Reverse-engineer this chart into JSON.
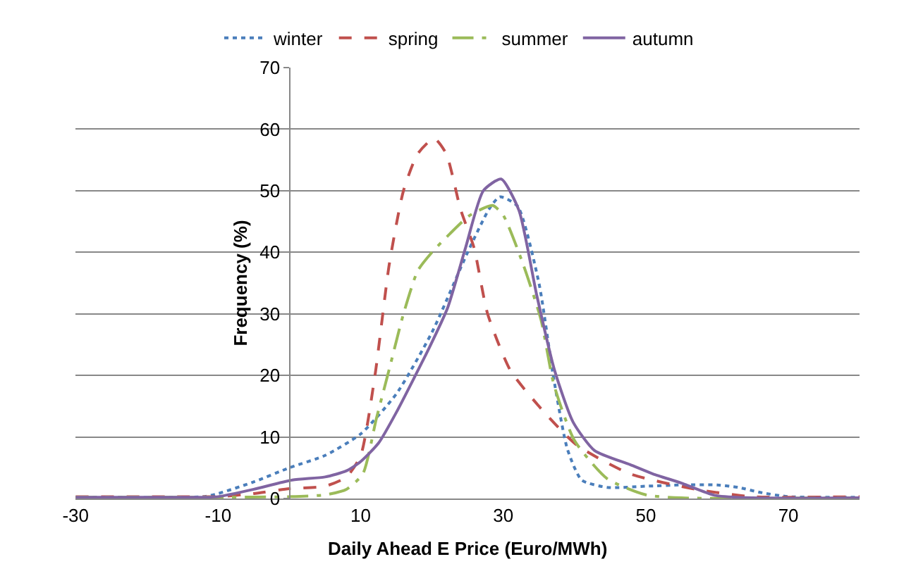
{
  "chart_data": {
    "type": "line",
    "xlabel": "Daily Ahead E Price (Euro/MWh)",
    "ylabel": "Frequency (%)",
    "xlim": [
      -30,
      80
    ],
    "xticks": [
      -30,
      -10,
      10,
      30,
      50,
      70
    ],
    "ylim": [
      0,
      70
    ],
    "yticks": [
      0,
      10,
      20,
      30,
      40,
      50,
      60,
      70
    ],
    "grid": "y",
    "legend": "top",
    "marker": "none",
    "series": [
      {
        "name": "winter",
        "color": "#4a7ebb",
        "line_style": "dotted",
        "x": [
          -30,
          -15,
          -12,
          -10,
          -5,
          0,
          5,
          10,
          15,
          20,
          25,
          28,
          29.5,
          32,
          35,
          37,
          39,
          41,
          44.6,
          50,
          55,
          60,
          63,
          66,
          70,
          80
        ],
        "values": [
          0.2,
          0.2,
          0.3,
          0.8,
          2.7,
          5,
          7,
          10.5,
          17,
          27,
          40,
          47,
          49,
          47.5,
          35,
          20,
          8,
          3,
          1.8,
          2,
          2.2,
          2.2,
          1.8,
          1,
          0.3,
          0.2
        ]
      },
      {
        "name": "spring",
        "color": "#c0504d",
        "line_style": "dashed",
        "x": [
          -30,
          -15,
          -10,
          -5,
          0,
          5,
          8,
          10,
          12,
          14,
          16,
          18,
          20.3,
          22,
          24,
          25.9,
          27.8,
          31,
          35.3,
          40.3,
          47.8,
          57,
          65,
          80
        ],
        "values": [
          0.3,
          0.3,
          0.3,
          0.8,
          1.6,
          2,
          3.5,
          7,
          20,
          38,
          50,
          56,
          58.5,
          56,
          47,
          40.7,
          30,
          20.8,
          14.6,
          8.7,
          4,
          1.5,
          0.3,
          0.3
        ]
      },
      {
        "name": "summer",
        "color": "#9bbb59",
        "line_style": "dashdot",
        "x": [
          -30,
          -10,
          0,
          5,
          8,
          10.3,
          12.2,
          14,
          16,
          18,
          20,
          22.5,
          25.3,
          28.5,
          30,
          32.8,
          35.3,
          37.1,
          40,
          44.6,
          50,
          55,
          80
        ],
        "values": [
          0.2,
          0.2,
          0.3,
          0.6,
          1.5,
          4,
          13,
          21,
          30,
          37,
          40,
          43,
          46,
          47.6,
          46,
          38,
          29,
          18.5,
          9.4,
          3.2,
          0.6,
          0.1,
          0.1
        ]
      },
      {
        "name": "autumn",
        "color": "#8064a2",
        "line_style": "solid",
        "x": [
          -30,
          -12,
          -10,
          -5,
          0.4,
          5,
          8,
          10,
          12.5,
          15,
          19.7,
          22.2,
          24.7,
          27.2,
          29.7,
          32.2,
          34.7,
          37.2,
          39.8,
          42.8,
          47.8,
          51,
          55,
          59.7,
          65,
          80
        ],
        "values": [
          0.2,
          0.2,
          0.3,
          1.5,
          3,
          3.5,
          4.5,
          6,
          9,
          14,
          24.7,
          31,
          40.7,
          50,
          51.9,
          46.8,
          33,
          20.8,
          12.4,
          7.8,
          5.5,
          4,
          2.5,
          0.5,
          0.1,
          0.1
        ]
      }
    ]
  }
}
